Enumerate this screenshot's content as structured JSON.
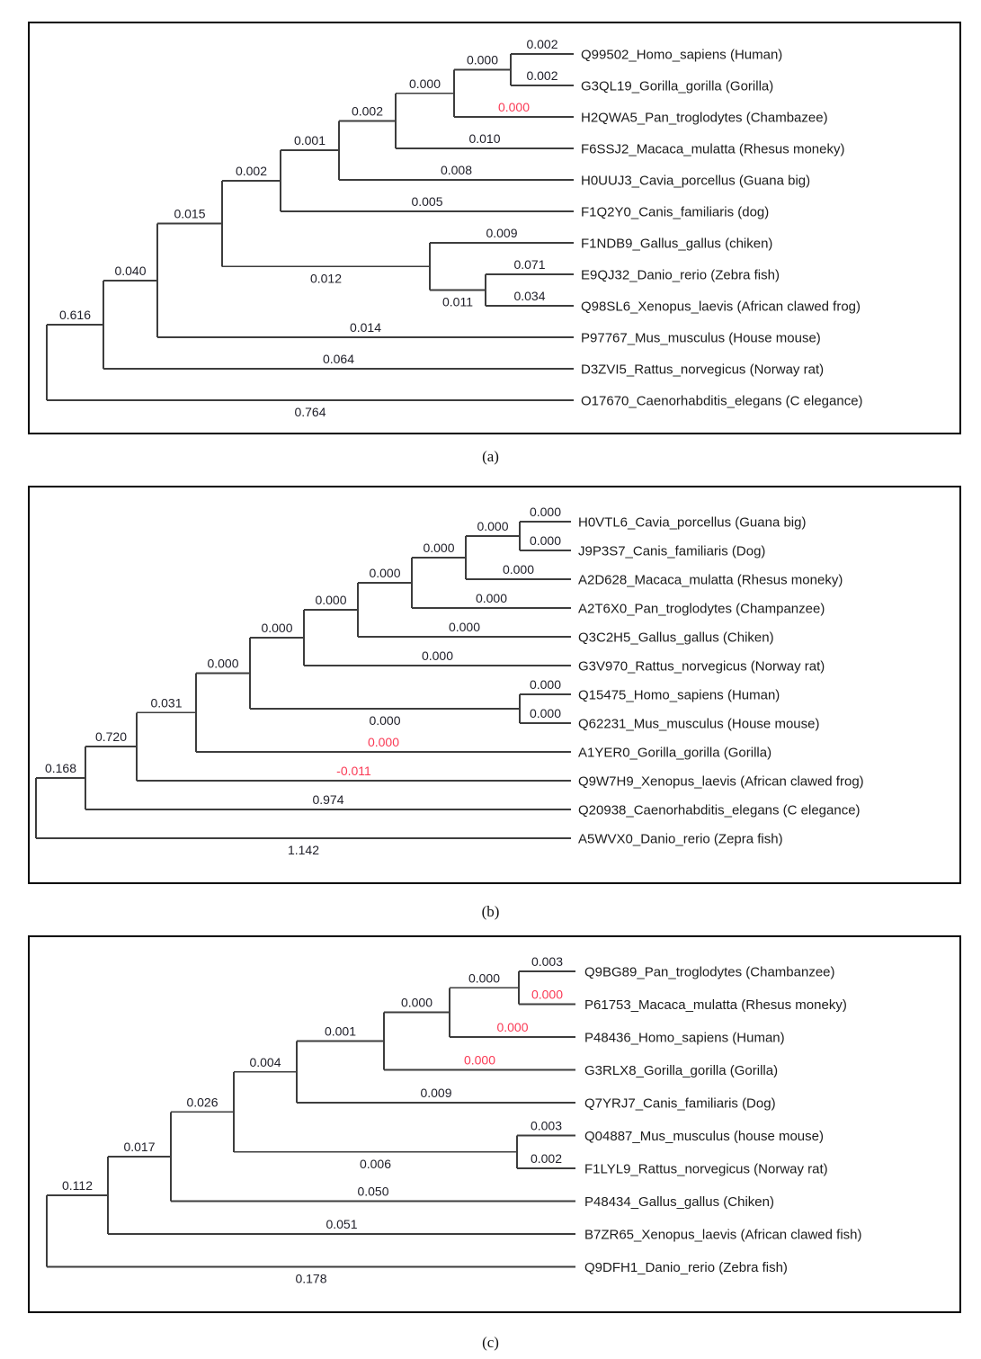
{
  "figure": {
    "type": "phylogenetic-trees",
    "colors": {
      "highlight": "#fa3a55",
      "value_text": "#20202a",
      "taxon_text": "#1c1c1c",
      "line": "#3d3d3d",
      "border": "#000000",
      "background": "#ffffff"
    },
    "panels": [
      {
        "caption": "(a)",
        "taxa": [
          {
            "label": "Q99502_Homo_sapiens (Human)",
            "branch_length": "0.002",
            "highlight": false
          },
          {
            "label": "G3QL19_Gorilla_gorilla (Gorilla)",
            "branch_length": "0.002",
            "highlight": false
          },
          {
            "label": "H2QWA5_Pan_troglodytes (Chambazee)",
            "branch_length": "0.000",
            "highlight": true
          },
          {
            "label": "F6SSJ2_Macaca_mulatta (Rhesus moneky)",
            "branch_length": "0.010",
            "highlight": false
          },
          {
            "label": "H0UUJ3_Cavia_porcellus (Guana big)",
            "branch_length": "0.008",
            "highlight": false
          },
          {
            "label": "F1Q2Y0_Canis_familiaris (dog)",
            "branch_length": "0.005",
            "highlight": false
          },
          {
            "label": "F1NDB9_Gallus_gallus (chiken)",
            "branch_length": "0.009",
            "highlight": false
          },
          {
            "label": "E9QJ32_Danio_rerio (Zebra fish)",
            "branch_length": "0.071",
            "highlight": false
          },
          {
            "label": "Q98SL6_Xenopus_laevis (African clawed frog)",
            "branch_length": "0.034",
            "highlight": false
          },
          {
            "label": "P97767_Mus_musculus (House mouse)",
            "branch_length": "0.014",
            "highlight": false
          },
          {
            "label": "D3ZVI5_Rattus_norvegicus (Norway rat)",
            "branch_length": "0.064",
            "highlight": false
          },
          {
            "label": "O17670_Caenorhabditis_elegans (C elegance)",
            "branch_length": "0.764",
            "highlight": false
          }
        ],
        "internal_branches": {
          "c1": "0.000",
          "nP": "0.000",
          "nQ": "0.002",
          "nR": "0.001",
          "nS": "0.002",
          "nT": "0.012",
          "c2": "0.011",
          "nU": "0.015",
          "nV": "0.040",
          "nW": "0.616"
        }
      },
      {
        "caption": "(b)",
        "taxa": [
          {
            "label": "H0VTL6_Cavia_porcellus (Guana big)",
            "branch_length": "0.000",
            "highlight": false
          },
          {
            "label": "J9P3S7_Canis_familiaris (Dog)",
            "branch_length": "0.000",
            "highlight": false
          },
          {
            "label": "A2D628_Macaca_mulatta (Rhesus moneky)",
            "branch_length": "0.000",
            "highlight": false
          },
          {
            "label": "A2T6X0_Pan_troglodytes (Champanzee)",
            "branch_length": "0.000",
            "highlight": false
          },
          {
            "label": "Q3C2H5_Gallus_gallus (Chiken)",
            "branch_length": "0.000",
            "highlight": false
          },
          {
            "label": "G3V970_Rattus_norvegicus (Norway rat)",
            "branch_length": "0.000",
            "highlight": false
          },
          {
            "label": "Q15475_Homo_sapiens (Human)",
            "branch_length": "0.000",
            "highlight": false
          },
          {
            "label": "Q62231_Mus_musculus (House mouse)",
            "branch_length": "0.000",
            "highlight": false
          },
          {
            "label": "A1YER0_Gorilla_gorilla (Gorilla)",
            "branch_length": "0.000",
            "highlight": true
          },
          {
            "label": "Q9W7H9_Xenopus_laevis (African clawed frog)",
            "branch_length": "-0.011",
            "highlight": true
          },
          {
            "label": "Q20938_Caenorhabditis_elegans (C elegance)",
            "branch_length": "0.974",
            "highlight": false
          },
          {
            "label": "A5WVX0_Danio_rerio (Zepra fish)",
            "branch_length": "1.142",
            "highlight": false
          }
        ],
        "internal_branches": {
          "c1": "0.000",
          "nH": "0.000",
          "nG": "0.000",
          "nF": "0.000",
          "nE": "0.000",
          "nD": "0.000",
          "c2": "0.000",
          "nC": "0.031",
          "nB": "0.720",
          "nA": "0.168"
        }
      },
      {
        "caption": "(c)",
        "taxa": [
          {
            "label": "Q9BG89_Pan_troglodytes (Chambanzee)",
            "branch_length": "0.003",
            "highlight": false
          },
          {
            "label": "P61753_Macaca_mulatta (Rhesus moneky)",
            "branch_length": "0.000",
            "highlight": true
          },
          {
            "label": "P48436_Homo_sapiens (Human)",
            "branch_length": "0.000",
            "highlight": true
          },
          {
            "label": "G3RLX8_Gorilla_gorilla (Gorilla)",
            "branch_length": "0.000",
            "highlight": true
          },
          {
            "label": "Q7YRJ7_Canis_familiaris (Dog)",
            "branch_length": "0.009",
            "highlight": false
          },
          {
            "label": "Q04887_Mus_musculus (house mouse)",
            "branch_length": "0.003",
            "highlight": false
          },
          {
            "label": "F1LYL9_Rattus_norvegicus (Norway rat)",
            "branch_length": "0.002",
            "highlight": false
          },
          {
            "label": "P48434_Gallus_gallus (Chiken)",
            "branch_length": "0.050",
            "highlight": false
          },
          {
            "label": "B7ZR65_Xenopus_laevis (African clawed fish)",
            "branch_length": "0.051",
            "highlight": false
          },
          {
            "label": "Q9DFH1_Danio_rerio (Zebra fish)",
            "branch_length": "0.178",
            "highlight": false
          }
        ],
        "internal_branches": {
          "c1": "0.000",
          "nF": "0.000",
          "nE": "0.001",
          "nD": "0.004",
          "c2": "0.006",
          "nC": "0.026",
          "nB": "0.017",
          "nA": "0.112"
        }
      }
    ]
  }
}
